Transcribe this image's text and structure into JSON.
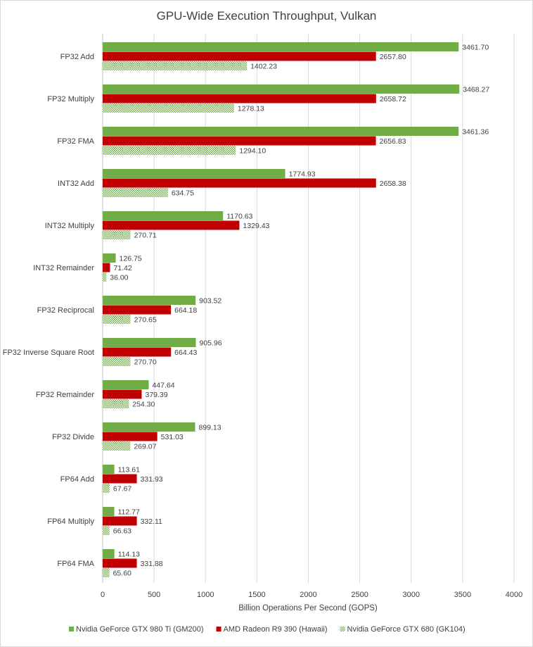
{
  "chart_data": {
    "type": "bar",
    "orientation": "horizontal",
    "title": "GPU-Wide Execution Throughput, Vulkan",
    "xlabel": "Billion Operations Per Second (GOPS)",
    "ylabel": "",
    "xlim": [
      0,
      4000
    ],
    "xticks": [
      0,
      500,
      1000,
      1500,
      2000,
      2500,
      3000,
      3500,
      4000
    ],
    "grid": true,
    "legend_position": "bottom",
    "categories": [
      "FP32 Add",
      "FP32 Multiply",
      "FP32 FMA",
      "INT32 Add",
      "INT32 Multiply",
      "INT32 Remainder",
      "FP32 Reciprocal",
      "FP32 Inverse Square Root",
      "FP32 Remainder",
      "FP32 Divide",
      "FP64 Add",
      "FP64 Multiply",
      "FP64 FMA"
    ],
    "series": [
      {
        "name": "Nvidia GeForce GTX 980 Ti (GM200)",
        "color": "#70ad47",
        "pattern": "solid",
        "values": [
          3461.7,
          3468.27,
          3461.36,
          1774.93,
          1170.63,
          126.75,
          903.52,
          905.96,
          447.64,
          899.13,
          113.61,
          112.77,
          114.13
        ],
        "labels": [
          "3461.70",
          "3468.27",
          "3461.36",
          "1774.93",
          "1170.63",
          "126.75",
          "903.52",
          "905.96",
          "447.64",
          "899.13",
          "113.61",
          "112.77",
          "114.13"
        ]
      },
      {
        "name": "AMD Radeon R9 390 (Hawaii)",
        "color": "#c00000",
        "pattern": "solid",
        "values": [
          2657.8,
          2658.72,
          2656.83,
          2658.38,
          1329.43,
          71.42,
          664.18,
          664.43,
          379.39,
          531.03,
          331.93,
          332.11,
          331.88
        ],
        "labels": [
          "2657.80",
          "2658.72",
          "2656.83",
          "2658.38",
          "1329.43",
          "71.42",
          "664.18",
          "664.43",
          "379.39",
          "531.03",
          "331.93",
          "332.11",
          "331.88"
        ]
      },
      {
        "name": "Nvidia GeForce GTX 680 (GK104)",
        "color": "#70ad47",
        "pattern": "dotted",
        "values": [
          1402.23,
          1278.13,
          1294.1,
          634.75,
          270.71,
          36.0,
          270.65,
          270.7,
          254.3,
          269.07,
          67.67,
          66.63,
          65.6
        ],
        "labels": [
          "1402.23",
          "1278.13",
          "1294.10",
          "634.75",
          "270.71",
          "36.00",
          "270.65",
          "270.70",
          "254.30",
          "269.07",
          "67.67",
          "66.63",
          "65.60"
        ]
      }
    ]
  }
}
